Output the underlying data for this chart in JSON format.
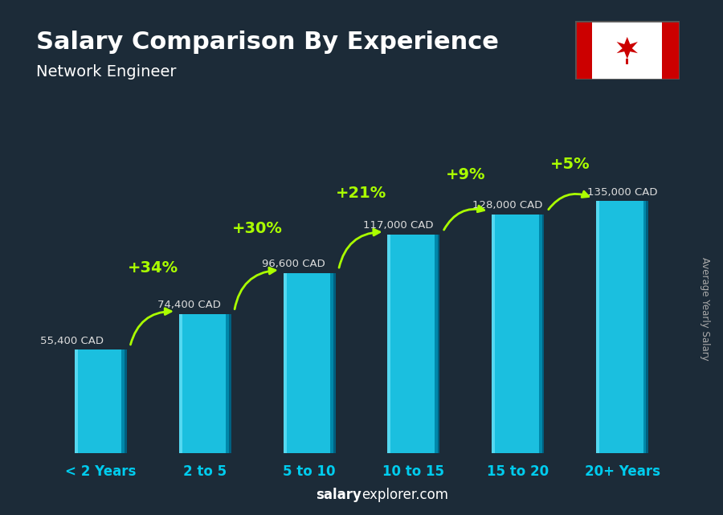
{
  "title": "Salary Comparison By Experience",
  "subtitle": "Network Engineer",
  "categories": [
    "< 2 Years",
    "2 to 5",
    "5 to 10",
    "10 to 15",
    "15 to 20",
    "20+ Years"
  ],
  "values": [
    55400,
    74400,
    96600,
    117000,
    128000,
    135000
  ],
  "value_labels": [
    "55,400 CAD",
    "74,400 CAD",
    "96,600 CAD",
    "117,000 CAD",
    "128,000 CAD",
    "135,000 CAD"
  ],
  "pct_labels": [
    "+34%",
    "+30%",
    "+21%",
    "+9%",
    "+5%"
  ],
  "bar_color_main": "#1bbfdf",
  "bar_color_light": "#55d8f0",
  "bar_color_dark": "#0088aa",
  "bar_color_side": "#006080",
  "background_color": "#1c2b38",
  "title_color": "#ffffff",
  "subtitle_color": "#ffffff",
  "salary_label_color": "#dddddd",
  "pct_color": "#aaff00",
  "xticklabel_color": "#00ccee",
  "ylabel_text": "Average Yearly Salary",
  "footer_salary": "salary",
  "footer_rest": "explorer.com",
  "ylim_max": 160000,
  "bar_width": 0.5,
  "bar_gap": 0.25
}
